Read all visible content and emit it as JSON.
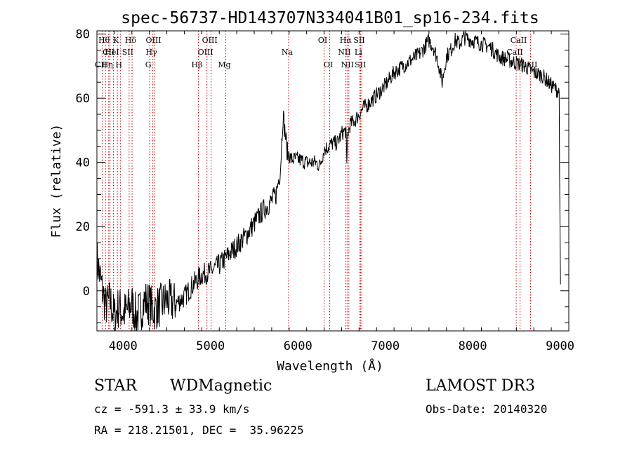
{
  "chart_data": {
    "type": "line",
    "title": "spec-56737-HD143707N334041B01_sp16-234.fits",
    "xlabel": "Wavelength (Å)",
    "ylabel": "Flux (relative)",
    "xlim": [
      3700,
      9100
    ],
    "ylim": [
      -12.5,
      81
    ],
    "x_ticks": [
      4000,
      5000,
      6000,
      7000,
      8000,
      9000
    ],
    "x_tick_labels": [
      "4000",
      "5000",
      "6000",
      "7000",
      "8000",
      "9000"
    ],
    "y_ticks": [
      0,
      20,
      40,
      60,
      80
    ],
    "y_tick_labels": [
      "0",
      "20",
      "40",
      "60",
      "80"
    ],
    "grid": false,
    "series": [
      {
        "name": "spectrum",
        "x": [
          3700,
          3750,
          3800,
          3850,
          3900,
          3950,
          4000,
          4050,
          4100,
          4150,
          4200,
          4250,
          4300,
          4350,
          4400,
          4450,
          4500,
          4600,
          4700,
          4800,
          4900,
          5000,
          5100,
          5200,
          5300,
          5400,
          5500,
          5600,
          5700,
          5750,
          5800,
          5830,
          5850,
          5880,
          5920,
          6000,
          6100,
          6200,
          6250,
          6300,
          6350,
          6400,
          6450,
          6500,
          6550,
          6560,
          6570,
          6600,
          6650,
          6700,
          6750,
          6800,
          6900,
          7000,
          7100,
          7200,
          7300,
          7400,
          7500,
          7550,
          7600,
          7650,
          7700,
          7750,
          7800,
          7850,
          7900,
          8000,
          8100,
          8200,
          8300,
          8400,
          8500,
          8600,
          8700,
          8800,
          8900,
          8990,
          9000,
          9005
        ],
        "y": [
          10,
          2,
          -5,
          -3,
          -8,
          -5,
          -7,
          -6,
          -4,
          -8,
          -6,
          -3,
          -4,
          -6,
          -5,
          -4,
          -3,
          -4,
          -2,
          2,
          5,
          6,
          8,
          11,
          14,
          17,
          21,
          25,
          28,
          30,
          38,
          55,
          50,
          43,
          41,
          41,
          40,
          40,
          39,
          44,
          45,
          46,
          46,
          49,
          50,
          38,
          49,
          52,
          53,
          55,
          57,
          58,
          61,
          64,
          68,
          70,
          72,
          74,
          78,
          76,
          72,
          65,
          73,
          75,
          78,
          77,
          79,
          78,
          77,
          76,
          73,
          72,
          71,
          70,
          68,
          67,
          64,
          62,
          15,
          0
        ],
        "color": "#000000"
      }
    ],
    "line_markers": [
      {
        "label": "Hθ",
        "wave": 3798,
        "row": 1
      },
      {
        "label": "K",
        "wave": 3934,
        "row": 1
      },
      {
        "label": "Hδ",
        "wave": 4102,
        "row": 1
      },
      {
        "label": "OIII",
        "wave": 4363,
        "row": 1
      },
      {
        "label": "OIII",
        "wave": 5007,
        "row": 1
      },
      {
        "label": "OI",
        "wave": 6300,
        "row": 1
      },
      {
        "label": "Hα",
        "wave": 6563,
        "row": 1
      },
      {
        "label": "SII",
        "wave": 6717,
        "row": 1
      },
      {
        "label": "CaII",
        "wave": 8542,
        "row": 1
      },
      {
        "label": "CII",
        "wave": 3850,
        "row": 2
      },
      {
        "label": "HeI",
        "wave": 3889,
        "row": 2
      },
      {
        "label": "SII",
        "wave": 4069,
        "row": 2
      },
      {
        "label": "Hγ",
        "wave": 4340,
        "row": 2
      },
      {
        "label": "OIII",
        "wave": 4959,
        "row": 2
      },
      {
        "label": "Na",
        "wave": 5893,
        "row": 2
      },
      {
        "label": "NII",
        "wave": 6548,
        "row": 2
      },
      {
        "label": "Li",
        "wave": 6708,
        "row": 2
      },
      {
        "label": "CaII",
        "wave": 8498,
        "row": 2
      },
      {
        "label": "CII",
        "wave": 3760,
        "row": 3
      },
      {
        "label": "Hη",
        "wave": 3835,
        "row": 3
      },
      {
        "label": "H",
        "wave": 3968,
        "row": 3
      },
      {
        "label": "G",
        "wave": 4304,
        "row": 3
      },
      {
        "label": "Hβ",
        "wave": 4861,
        "row": 3
      },
      {
        "label": "Mg",
        "wave": 5175,
        "row": 3
      },
      {
        "label": "OI",
        "wave": 6364,
        "row": 3
      },
      {
        "label": "NII",
        "wave": 6583,
        "row": 3
      },
      {
        "label": "SII",
        "wave": 6731,
        "row": 3
      },
      {
        "label": "CaII",
        "wave": 8662,
        "row": 3
      }
    ]
  },
  "info": {
    "object_class": "STAR",
    "subclass": "WDMagnetic",
    "survey": "LAMOST DR3",
    "cz": "cz = -591.3 ± 33.9 km/s",
    "obs_date": "Obs-Date: 20140320",
    "radec": "RA = 218.21501, DEC =  35.96225"
  },
  "colors": {
    "line": "#000000",
    "marker": "#cc0000",
    "axis": "#000000"
  }
}
